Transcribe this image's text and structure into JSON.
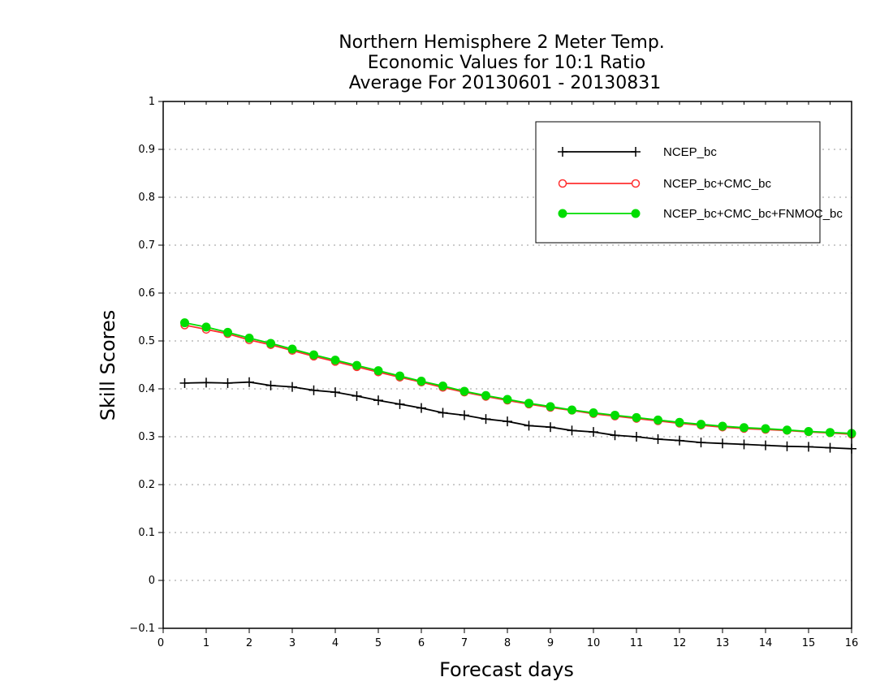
{
  "chart_data": {
    "type": "line",
    "title": [
      "Northern Hemisphere 2 Meter Temp.",
      "Economic Values for 10:1 Ratio",
      "Average For 20130601 - 20130831"
    ],
    "xlabel": "Forecast days",
    "ylabel": "Skill Scores",
    "xlim": [
      0,
      16
    ],
    "ylim": [
      -0.1,
      1
    ],
    "xticks": [
      "0",
      "1",
      "2",
      "3",
      "4",
      "5",
      "6",
      "7",
      "8",
      "9",
      "10",
      "11",
      "12",
      "13",
      "14",
      "15",
      "16"
    ],
    "yticks": [
      "-0.1",
      "0",
      "0.1",
      "0.2",
      "0.3",
      "0.4",
      "0.5",
      "0.6",
      "0.7",
      "0.8",
      "0.9",
      "1"
    ],
    "grid": "horizontal dotted",
    "legend_position": "top-right",
    "x": [
      0.5,
      1,
      1.5,
      2,
      2.5,
      3,
      3.5,
      4,
      4.5,
      5,
      5.5,
      6,
      6.5,
      7,
      7.5,
      8,
      8.5,
      9,
      9.5,
      10,
      10.5,
      11,
      11.5,
      12,
      12.5,
      13,
      13.5,
      14,
      14.5,
      15,
      15.5,
      16
    ],
    "series": [
      {
        "name": "NCEP_bc",
        "color": "#000000",
        "marker": "plus",
        "values": [
          0.412,
          0.413,
          0.412,
          0.414,
          0.407,
          0.404,
          0.397,
          0.393,
          0.385,
          0.376,
          0.368,
          0.36,
          0.35,
          0.345,
          0.337,
          0.332,
          0.323,
          0.32,
          0.313,
          0.31,
          0.303,
          0.3,
          0.295,
          0.292,
          0.288,
          0.286,
          0.284,
          0.282,
          0.28,
          0.279,
          0.277,
          0.275
        ]
      },
      {
        "name": "NCEP_bc+CMC_bc",
        "color": "#ff3030",
        "marker": "open-circle",
        "values": [
          0.533,
          0.524,
          0.515,
          0.502,
          0.492,
          0.48,
          0.468,
          0.457,
          0.446,
          0.435,
          0.424,
          0.414,
          0.403,
          0.393,
          0.384,
          0.376,
          0.368,
          0.361,
          0.355,
          0.348,
          0.343,
          0.338,
          0.333,
          0.328,
          0.324,
          0.32,
          0.317,
          0.315,
          0.313,
          0.31,
          0.308,
          0.305
        ]
      },
      {
        "name": "NCEP_bc+CMC_bc+FNMOC_bc",
        "color": "#00dd00",
        "marker": "filled-circle",
        "values": [
          0.538,
          0.529,
          0.518,
          0.506,
          0.495,
          0.483,
          0.471,
          0.46,
          0.449,
          0.438,
          0.427,
          0.416,
          0.406,
          0.395,
          0.386,
          0.378,
          0.37,
          0.363,
          0.356,
          0.35,
          0.345,
          0.34,
          0.335,
          0.33,
          0.326,
          0.322,
          0.319,
          0.317,
          0.314,
          0.311,
          0.309,
          0.307
        ]
      }
    ]
  }
}
